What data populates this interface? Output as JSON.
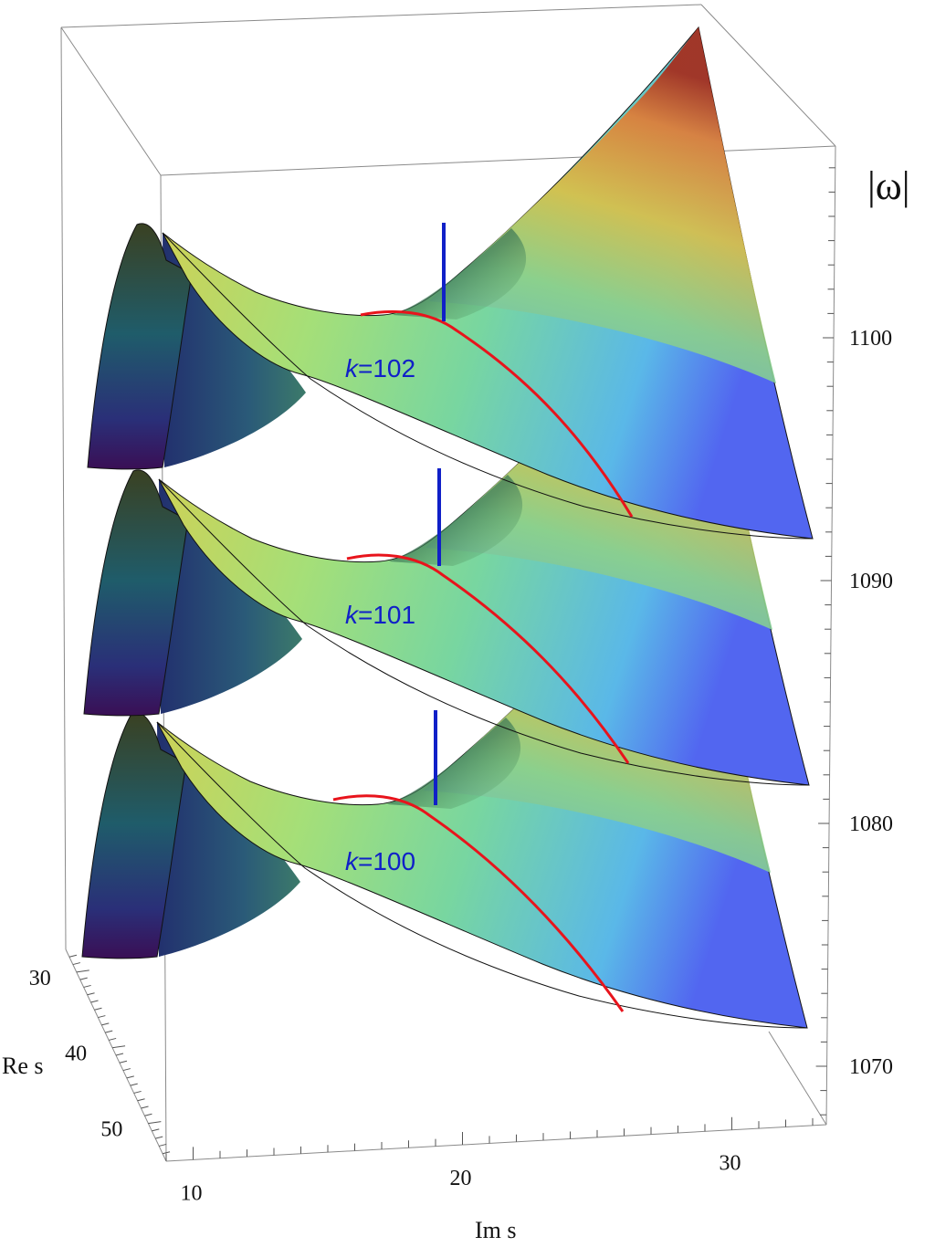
{
  "chart_data": {
    "type": "surface3d",
    "z_axis": {
      "label": "|ω|",
      "ticks": [
        1070,
        1080,
        1090,
        1100
      ]
    },
    "x_axis": {
      "label": "Im s",
      "ticks": [
        10,
        20,
        30
      ]
    },
    "y_axis": {
      "label": "Re s",
      "ticks": [
        30,
        40,
        50
      ]
    },
    "surfaces": [
      {
        "k": 100,
        "label": "k=100"
      },
      {
        "k": 101,
        "label": "k=101"
      },
      {
        "k": 102,
        "label": "k=102"
      }
    ],
    "annotations": {
      "red_curve": "#e8141c",
      "blue_marker": "#1020c8"
    },
    "colormap": [
      "#3b0f4f",
      "#26456e",
      "#21918c",
      "#9bd06a",
      "#f5c04a",
      "#f08b3b",
      "#b8321e"
    ]
  }
}
